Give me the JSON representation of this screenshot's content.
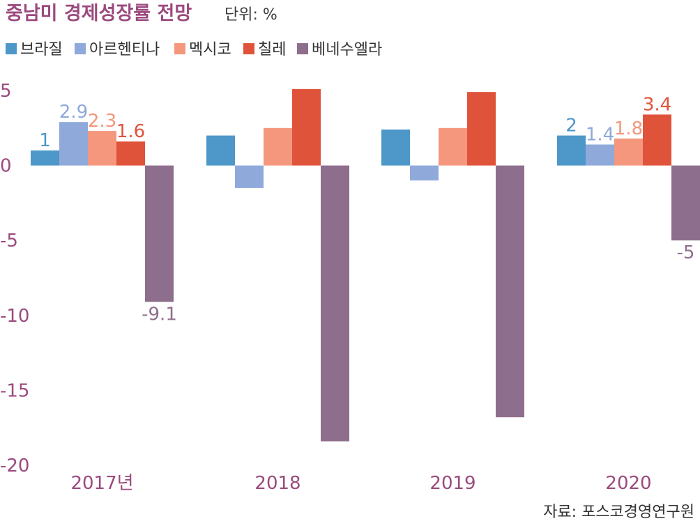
{
  "title": "중남미 경제성장률 전망",
  "unit_label": "단위: %",
  "source": "자료: 포스코경영연구원",
  "colors": {
    "title": "#9b4a7e",
    "axis_text": "#9b4a7e",
    "zero_line": "#cccccc"
  },
  "chart_data": {
    "type": "bar",
    "title": "중남미 경제성장률 전망",
    "categories": [
      "2017년",
      "2018",
      "2019",
      "2020"
    ],
    "ylim": [
      -20,
      5
    ],
    "yticks": [
      5,
      0,
      -5,
      -10,
      -15,
      -20
    ],
    "ytick_labels": [
      "5",
      "0",
      "-5",
      "-10",
      "-15",
      "-20"
    ],
    "grid": false,
    "legend_position": "top-left",
    "series": [
      {
        "name": "브라질",
        "color": "#4d97c9",
        "values": [
          1,
          2,
          2.4,
          2
        ],
        "labels": [
          "1",
          "",
          "",
          "2"
        ]
      },
      {
        "name": "아르헨티나",
        "color": "#8fa9da",
        "values": [
          2.9,
          -1.5,
          -1,
          1.4
        ],
        "labels": [
          "2.9",
          "",
          "",
          "1.4"
        ]
      },
      {
        "name": "멕시코",
        "color": "#f4977c",
        "values": [
          2.3,
          2.5,
          2.5,
          1.8
        ],
        "labels": [
          "2.3",
          "",
          "",
          "1.8"
        ]
      },
      {
        "name": "칠레",
        "color": "#e0533b",
        "values": [
          1.6,
          5.1,
          4.9,
          3.4
        ],
        "labels": [
          "1.6",
          "",
          "",
          "3.4"
        ]
      },
      {
        "name": "베네수엘라",
        "color": "#8e6e8d",
        "values": [
          -9.1,
          -18.4,
          -16.8,
          -5
        ],
        "labels": [
          "-9.1",
          "",
          "",
          "-5"
        ]
      }
    ]
  }
}
